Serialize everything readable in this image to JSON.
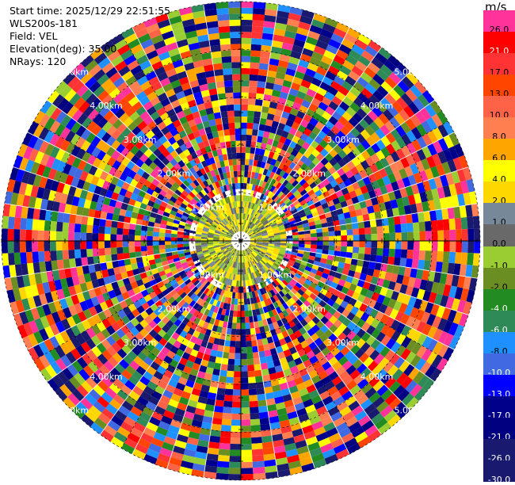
{
  "info": {
    "start_time": "Start time: 2025/12/29 22:51:55",
    "site": "WLS200s-181",
    "field": "Field: VEL",
    "elevation": "Elevation(deg): 35.00",
    "nrays": "NRays: 120"
  },
  "colorbar": {
    "unit": "m/s",
    "levels": [
      {
        "label": "26.0",
        "color": "#ff3399"
      },
      {
        "label": "21.0",
        "color": "#ff0000"
      },
      {
        "label": "17.0",
        "color": "#ff3333"
      },
      {
        "label": "13.0",
        "color": "#ff4500"
      },
      {
        "label": "10.0",
        "color": "#ff6347"
      },
      {
        "label": "8.0",
        "color": "#ff7f50"
      },
      {
        "label": "6.0",
        "color": "#ffa500"
      },
      {
        "label": "4.0",
        "color": "#ffff00"
      },
      {
        "label": "2.0",
        "color": "#ffd700"
      },
      {
        "label": "1.0",
        "color": "#778899"
      },
      {
        "label": "0.0",
        "color": "#696969"
      },
      {
        "label": "-1.0",
        "color": "#9acd32"
      },
      {
        "label": "-2.0",
        "color": "#6b8e23"
      },
      {
        "label": "-4.0",
        "color": "#228b22"
      },
      {
        "label": "-6.0",
        "color": "#2e8b57"
      },
      {
        "label": "-8.0",
        "color": "#1e90ff"
      },
      {
        "label": "-10.0",
        "color": "#4169e1"
      },
      {
        "label": "-13.0",
        "color": "#0000ff"
      },
      {
        "label": "-17.0",
        "color": "#00008b"
      },
      {
        "label": "-21.0",
        "color": "#000080"
      },
      {
        "label": "-26.0",
        "color": "#191970"
      },
      {
        "label": "-30.0",
        "color": "#191970"
      }
    ]
  },
  "chart_data": {
    "type": "heatmap",
    "projection": "polar PPI",
    "field": "VEL",
    "rays": 120,
    "range_rings_km": [
      1,
      2,
      3,
      4,
      5
    ],
    "ring_labels": [
      "1.00km",
      "2.00km",
      "3.00km",
      "4.00km",
      "5.00km"
    ],
    "colorbar_unit": "m/s",
    "colorbar_ticks": [
      26,
      21,
      17,
      13,
      10,
      8,
      6,
      4,
      2,
      1,
      0,
      -1,
      -2,
      -4,
      -6,
      -8,
      -10,
      -13,
      -17,
      -21,
      -26,
      -30
    ]
  }
}
